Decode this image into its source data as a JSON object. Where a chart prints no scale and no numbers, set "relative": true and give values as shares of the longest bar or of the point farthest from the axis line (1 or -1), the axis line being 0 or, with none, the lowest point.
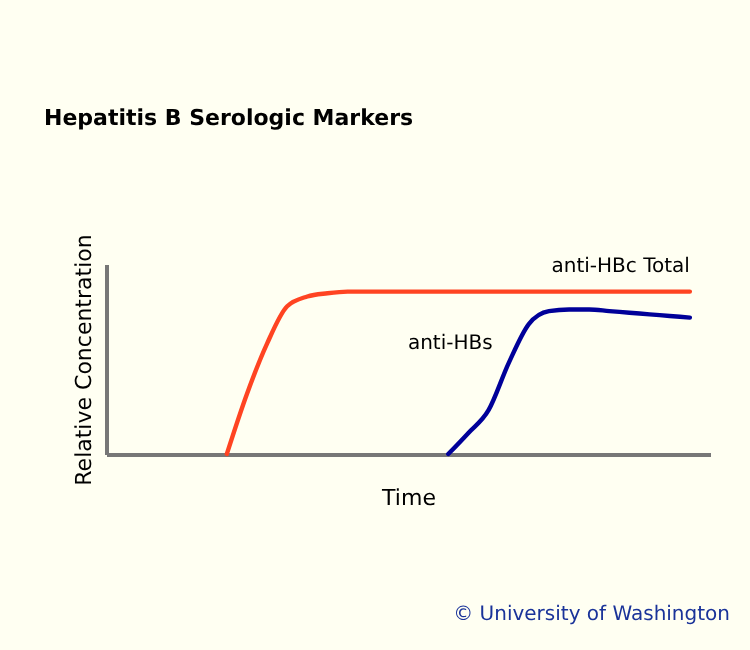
{
  "chart_data": {
    "type": "line",
    "title": "Hepatitis B Serologic Markers",
    "xlabel": "Time",
    "ylabel": "Relative Concentration",
    "relative": true,
    "legend": false,
    "marker": "none",
    "line_style": "solid",
    "grid": false,
    "tick_labels": false,
    "annotations": [
      "© University of Washington"
    ],
    "categories": [
      null,
      null,
      null,
      null,
      null,
      null,
      null,
      null,
      null,
      null,
      null,
      null,
      null,
      null,
      null,
      null,
      null,
      null,
      null,
      null,
      null,
      null,
      null,
      null,
      null,
      null,
      null,
      null,
      null,
      null,
      null
    ],
    "series": [
      {
        "name": "anti-HBc Total",
        "color": "#ff4422",
        "values": [
          null,
          null,
          null,
          null,
          null,
          null,
          0,
          0.37,
          0.68,
          0.91,
          0.97,
          0.99,
          1,
          1,
          1,
          1,
          1,
          1,
          1,
          1,
          1,
          1,
          1,
          1,
          1,
          1,
          1,
          1,
          1,
          1,
          null
        ]
      },
      {
        "name": "anti-HBs",
        "color": "#000099",
        "values": [
          null,
          null,
          null,
          null,
          null,
          null,
          null,
          null,
          null,
          null,
          null,
          null,
          null,
          null,
          null,
          null,
          null,
          0,
          0.13,
          0.27,
          0.56,
          0.8,
          0.88,
          0.89,
          0.89,
          0.88,
          0.87,
          0.86,
          0.85,
          0.84,
          null
        ]
      }
    ]
  }
}
